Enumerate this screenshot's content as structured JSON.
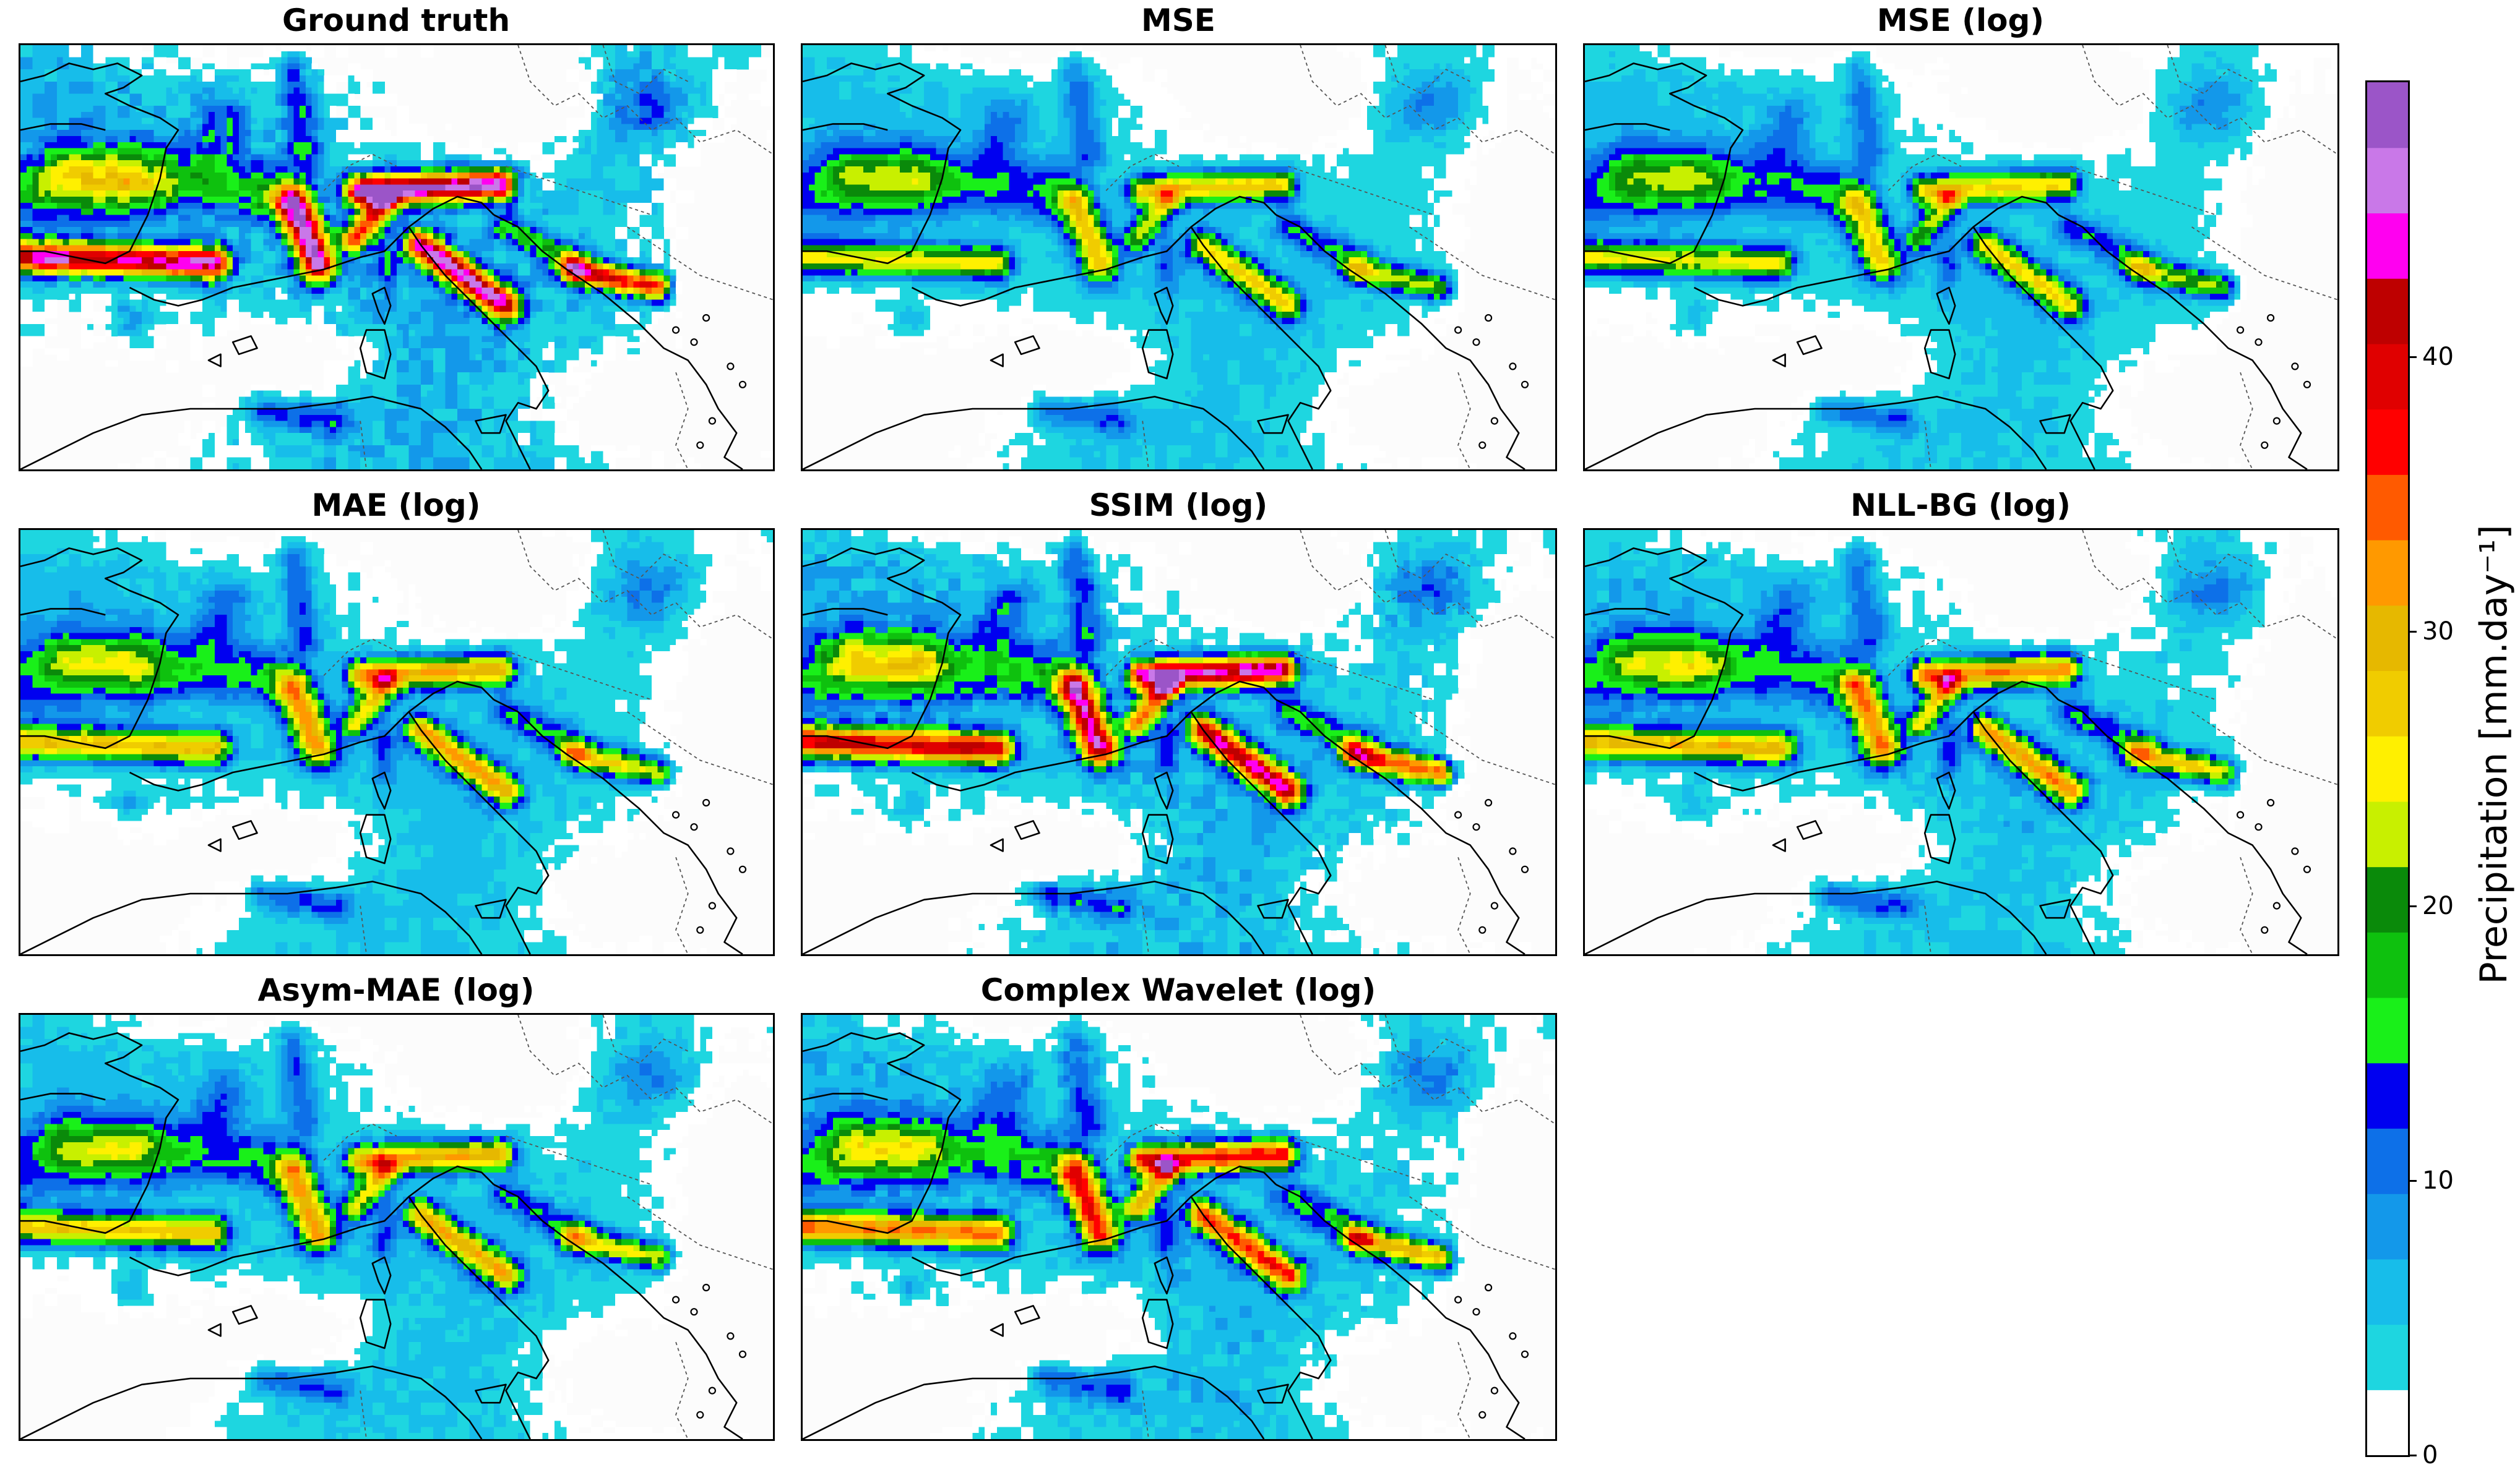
{
  "panels": [
    {
      "title": "Ground truth",
      "variant": 0
    },
    {
      "title": "MSE",
      "variant": 1
    },
    {
      "title": "MSE (log)",
      "variant": 2
    },
    {
      "title": "MAE (log)",
      "variant": 3
    },
    {
      "title": "SSIM (log)",
      "variant": 4
    },
    {
      "title": "NLL-BG (log)",
      "variant": 5
    },
    {
      "title": "Asym-MAE (log)",
      "variant": 6
    },
    {
      "title": "Complex Wavelet (log)",
      "variant": 7
    }
  ],
  "colorbar": {
    "label": "Precipitation [mm.day⁻¹]",
    "min": 0,
    "max": 50,
    "ticks": [
      "0",
      "10",
      "20",
      "30",
      "40"
    ],
    "tick_values": [
      0,
      10,
      20,
      30,
      40
    ],
    "colors": [
      "#ffffff",
      "#1ed6e0",
      "#17bdea",
      "#1398ea",
      "#0d70e8",
      "#0000f0",
      "#19f019",
      "#0ec10e",
      "#0a8a0a",
      "#c8f000",
      "#fff000",
      "#f0cc00",
      "#e6b800",
      "#ff9900",
      "#ff5a00",
      "#ff0000",
      "#e00000",
      "#be0000",
      "#ff00f0",
      "#c978e8",
      "#9b55c8"
    ]
  }
}
